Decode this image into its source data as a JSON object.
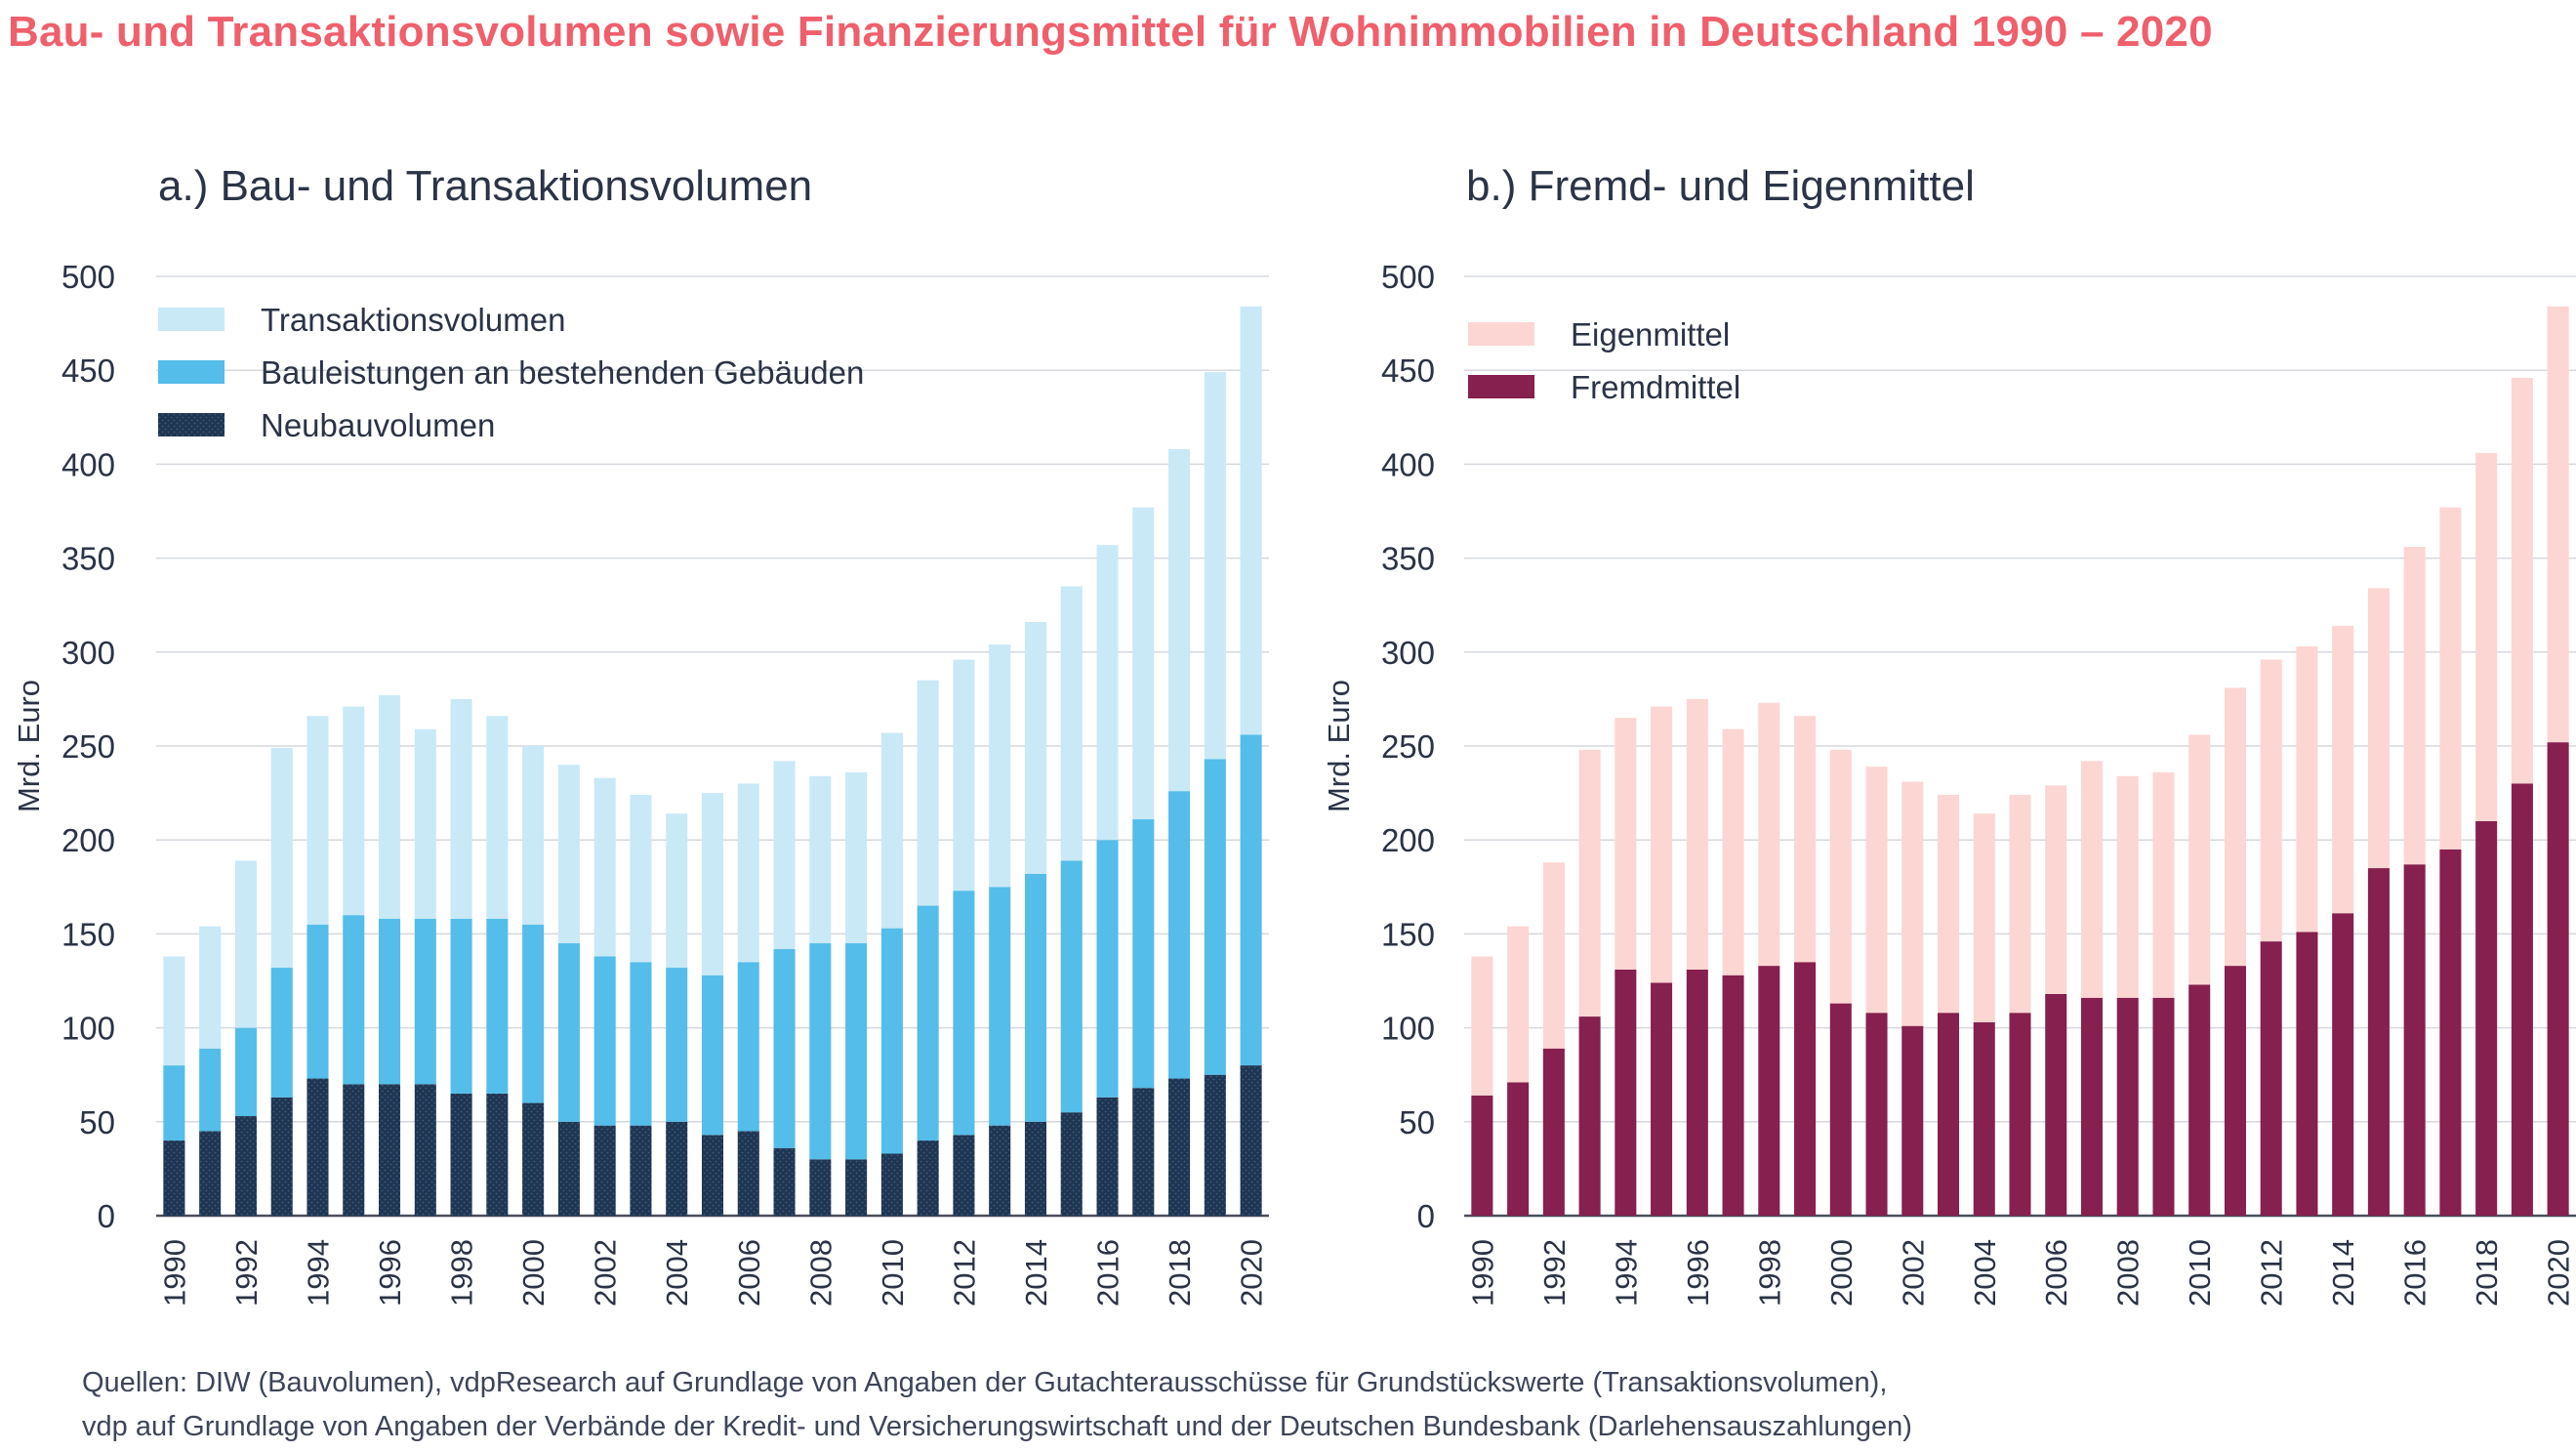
{
  "title": "Bau- und Transaktionsvolumen sowie Finanzierungsmittel für Wohnimmobilien in Deutschland 1990 – 2020",
  "sources": [
    "Quellen: DIW (Bauvolumen), vdpResearch auf Grundlage von Angaben der Gutachterausschüsse für Grundstückswerte (Transaktionsvolumen),",
    "vdp auf Grundlage von Angaben der Verbände der Kredit- und Versicherungswirtschaft und der Deutschen Bundesbank (Darlehensauszahlungen)"
  ],
  "chart_data": [
    {
      "type": "bar",
      "stacked": true,
      "title": "a.) Bau- und Transaktionsvolumen",
      "xlabel": "",
      "ylabel": "Mrd. Euro",
      "ylim": [
        0,
        500
      ],
      "yticks": [
        0,
        50,
        100,
        150,
        200,
        250,
        300,
        350,
        400,
        450,
        500
      ],
      "x": [
        1990,
        1991,
        1992,
        1993,
        1994,
        1995,
        1996,
        1997,
        1998,
        1999,
        2000,
        2001,
        2002,
        2003,
        2004,
        2005,
        2006,
        2007,
        2008,
        2009,
        2010,
        2011,
        2012,
        2013,
        2014,
        2015,
        2016,
        2017,
        2018,
        2019,
        2020
      ],
      "xtick_labels": [
        "1990",
        "1992",
        "1994",
        "1996",
        "1998",
        "2000",
        "2002",
        "2004",
        "2006",
        "2008",
        "2010",
        "2012",
        "2014",
        "2016",
        "2018",
        "2020"
      ],
      "grid": true,
      "legend_position": "top-left",
      "series": [
        {
          "name": "Neubauvolumen",
          "color": "#1f3653",
          "values": [
            40,
            45,
            53,
            63,
            73,
            70,
            70,
            70,
            65,
            65,
            60,
            50,
            48,
            48,
            50,
            43,
            45,
            36,
            30,
            30,
            33,
            40,
            43,
            48,
            50,
            55,
            63,
            68,
            73,
            75,
            80
          ]
        },
        {
          "name": "Bauleistungen an bestehenden Gebäuden",
          "color": "#55bde9",
          "values": [
            40,
            44,
            47,
            69,
            82,
            90,
            88,
            88,
            93,
            93,
            95,
            95,
            90,
            87,
            82,
            85,
            90,
            106,
            115,
            115,
            120,
            125,
            130,
            127,
            132,
            134,
            137,
            143,
            153,
            168,
            176
          ]
        },
        {
          "name": "Transaktionsvolumen",
          "color": "#c9e9f7",
          "values": [
            58,
            65,
            89,
            117,
            111,
            111,
            119,
            101,
            117,
            108,
            95,
            95,
            95,
            89,
            82,
            97,
            95,
            100,
            89,
            91,
            104,
            120,
            123,
            129,
            134,
            146,
            157,
            166,
            182,
            206,
            228
          ]
        }
      ]
    },
    {
      "type": "bar",
      "stacked": true,
      "title": "b.) Fremd- und Eigenmittel",
      "xlabel": "",
      "ylabel": "Mrd. Euro",
      "ylim": [
        0,
        500
      ],
      "yticks": [
        0,
        50,
        100,
        150,
        200,
        250,
        300,
        350,
        400,
        450,
        500
      ],
      "x": [
        1990,
        1991,
        1992,
        1993,
        1994,
        1995,
        1996,
        1997,
        1998,
        1999,
        2000,
        2001,
        2002,
        2003,
        2004,
        2005,
        2006,
        2007,
        2008,
        2009,
        2010,
        2011,
        2012,
        2013,
        2014,
        2015,
        2016,
        2017,
        2018,
        2019,
        2020
      ],
      "xtick_labels": [
        "1990",
        "1992",
        "1994",
        "1996",
        "1998",
        "2000",
        "2002",
        "2004",
        "2006",
        "2008",
        "2010",
        "2012",
        "2014",
        "2016",
        "2018",
        "2020"
      ],
      "grid": true,
      "legend_position": "top-left",
      "series": [
        {
          "name": "Fremdmittel",
          "color": "#86204e",
          "values": [
            64,
            71,
            89,
            106,
            131,
            124,
            131,
            128,
            133,
            135,
            113,
            108,
            101,
            108,
            103,
            108,
            118,
            116,
            116,
            116,
            123,
            133,
            146,
            151,
            161,
            185,
            187,
            195,
            210,
            230,
            252
          ]
        },
        {
          "name": "Eigenmittel",
          "color": "#fcd6d3",
          "values": [
            74,
            83,
            99,
            142,
            134,
            147,
            144,
            131,
            140,
            131,
            135,
            131,
            130,
            116,
            111,
            116,
            111,
            126,
            118,
            120,
            133,
            148,
            150,
            152,
            153,
            149,
            169,
            182,
            196,
            216,
            232
          ]
        }
      ]
    }
  ]
}
